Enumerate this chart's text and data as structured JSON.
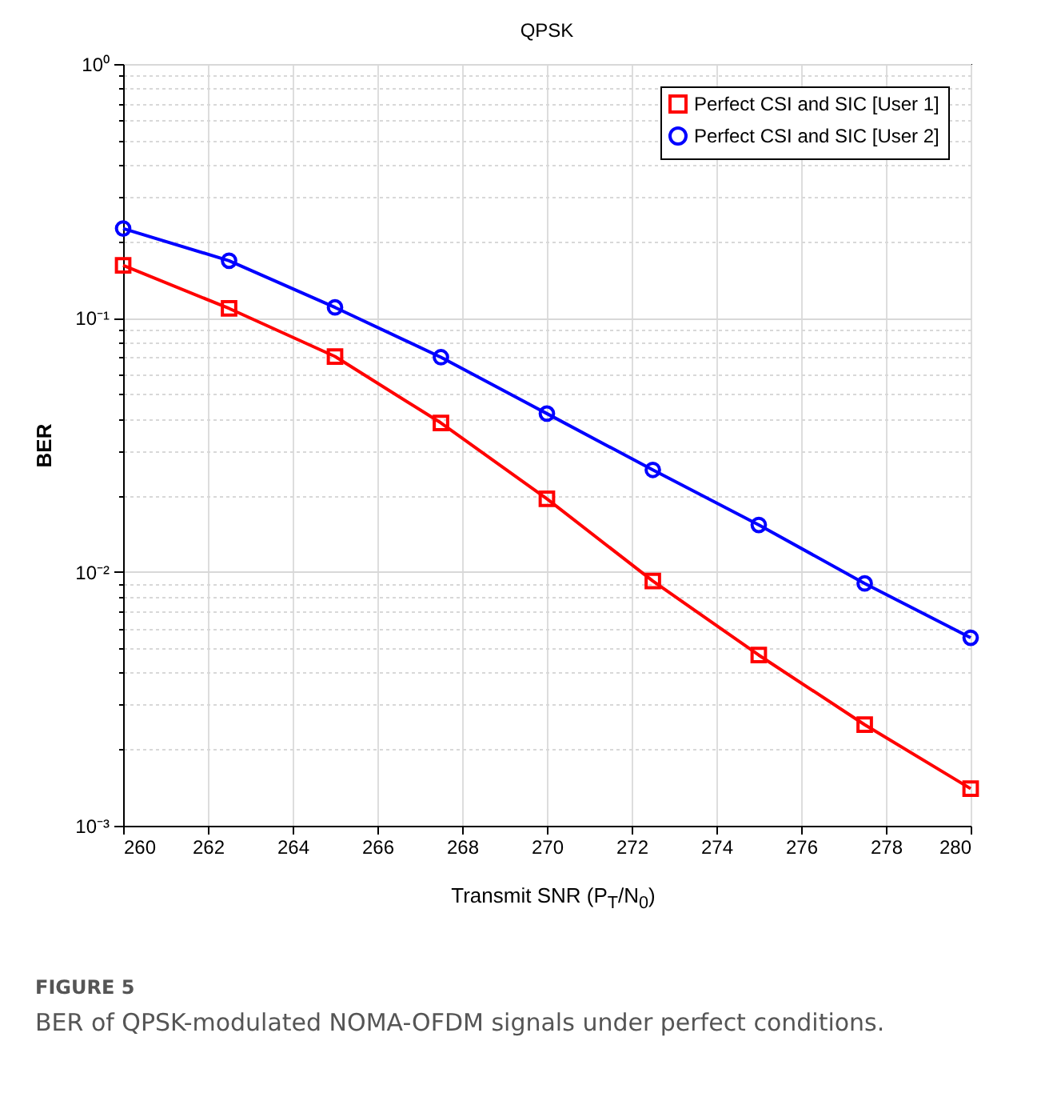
{
  "chart_data": {
    "type": "line",
    "title": "QPSK",
    "xlabel": "Transmit SNR (P$_{T}$/N$_{0}$)",
    "ylabel": "BER",
    "x": [
      260,
      262.5,
      265,
      267.5,
      270,
      272.5,
      275,
      277.5,
      280
    ],
    "series": [
      {
        "name": "Perfect CSI and SIC [User 1]",
        "color": "#ff0000",
        "marker": "square",
        "values": [
          0.161,
          0.109,
          0.0705,
          0.0386,
          0.0194,
          0.0092,
          0.0047,
          0.0025,
          0.0014
        ]
      },
      {
        "name": "Perfect CSI and SIC [User 2]",
        "color": "#0000ff",
        "marker": "circle",
        "values": [
          0.225,
          0.168,
          0.11,
          0.07,
          0.042,
          0.0252,
          0.0153,
          0.009,
          0.0055
        ]
      }
    ],
    "xlim": [
      260,
      280
    ],
    "xticks": [
      260,
      262,
      264,
      266,
      268,
      270,
      272,
      274,
      276,
      278,
      280
    ],
    "ylim": [
      0.001,
      1
    ],
    "yticks": [
      {
        "value": 0.001,
        "label": "10⁻³"
      },
      {
        "value": 0.002,
        "label": null
      },
      {
        "value": 0.003,
        "label": null
      },
      {
        "value": 0.004,
        "label": null
      },
      {
        "value": 0.005,
        "label": null
      },
      {
        "value": 0.006,
        "label": null
      },
      {
        "value": 0.007,
        "label": null
      },
      {
        "value": 0.008,
        "label": null
      },
      {
        "value": 0.009,
        "label": null
      },
      {
        "value": 0.01,
        "label": "10⁻²"
      },
      {
        "value": 0.02,
        "label": null
      },
      {
        "value": 0.03,
        "label": null
      },
      {
        "value": 0.04,
        "label": null
      },
      {
        "value": 0.05,
        "label": null
      },
      {
        "value": 0.06,
        "label": null
      },
      {
        "value": 0.07,
        "label": null
      },
      {
        "value": 0.08,
        "label": null
      },
      {
        "value": 0.09,
        "label": null
      },
      {
        "value": 0.1,
        "label": "10⁻¹"
      },
      {
        "value": 0.2,
        "label": null
      },
      {
        "value": 0.3,
        "label": null
      },
      {
        "value": 0.4,
        "label": null
      },
      {
        "value": 0.5,
        "label": null
      },
      {
        "value": 0.6,
        "label": null
      },
      {
        "value": 0.7,
        "label": null
      },
      {
        "value": 0.8,
        "label": null
      },
      {
        "value": 0.9,
        "label": null
      },
      {
        "value": 1,
        "label": "10⁰"
      }
    ],
    "log": true,
    "grid": true,
    "legend": "top right",
    "line_style": "solid",
    "annotations": [
      "FIGURE 5",
      "BER of QPSK-modulated NOMA-OFDM signals under perfect conditions."
    ]
  }
}
